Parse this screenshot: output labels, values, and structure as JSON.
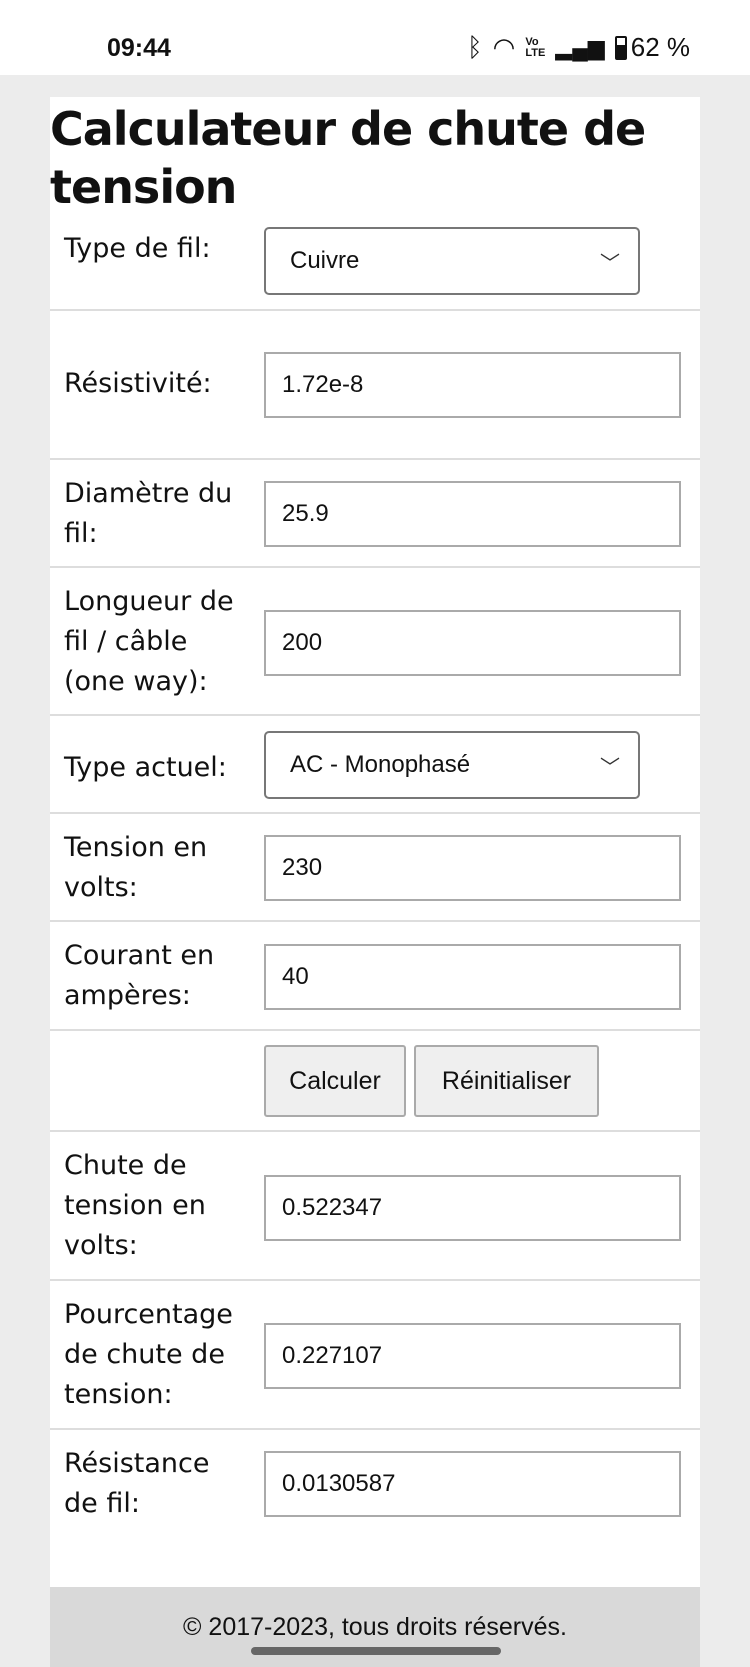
{
  "status_bar": {
    "time": "09:44",
    "battery": "62 %",
    "icons": [
      "bluetooth-icon",
      "wifi-icon",
      "volte-icon",
      "signal-icon",
      "battery-icon"
    ]
  },
  "title": "Calculateur de chute de tension",
  "fields": {
    "wire_type": {
      "label": "Type de fil:",
      "value": "Cuivre"
    },
    "resistivity": {
      "label": "Résistivité:",
      "value": "1.72e-8"
    },
    "diameter": {
      "label": "Diamètre du fil:",
      "value": "25.9"
    },
    "length": {
      "label": "Longueur de fil / câble (one way):",
      "value": "200"
    },
    "current_type": {
      "label": "Type actuel:",
      "value": "AC - Monophasé"
    },
    "voltage": {
      "label": "Tension en volts:",
      "value": "230"
    },
    "current": {
      "label": "Courant en ampères:",
      "value": "40"
    },
    "drop_volts": {
      "label": "Chute de tension en volts:",
      "value": "0.522347"
    },
    "drop_percent": {
      "label": "Pourcentage de chute de tension:",
      "value": "0.227107"
    },
    "wire_resistance": {
      "label": "Résistance de fil:",
      "value": "0.0130587"
    }
  },
  "buttons": {
    "calculate": "Calculer",
    "reset": "Réinitialiser"
  },
  "footer": "© 2017-2023, tous droits réservés."
}
